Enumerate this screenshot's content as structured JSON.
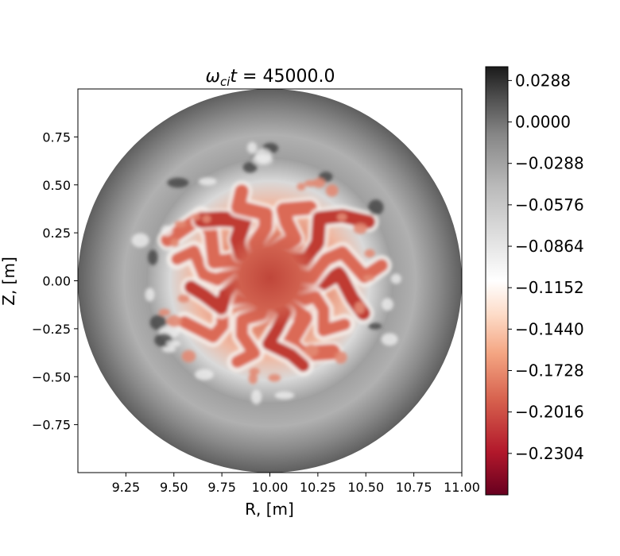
{
  "chart_data": {
    "type": "heatmap",
    "title_symbol": "ω",
    "title_subscript": "ci",
    "title_var": "t",
    "title_eq": " = ",
    "title_value": "45000.0",
    "xlabel": "R, [m]",
    "ylabel": "Z, [m]",
    "xlim": [
      9.0,
      11.0
    ],
    "ylim": [
      -1.0,
      1.0
    ],
    "x_ticks": [
      "9.25",
      "9.50",
      "9.75",
      "10.00",
      "10.25",
      "10.50",
      "10.75",
      "11.00"
    ],
    "x_tick_values": [
      9.25,
      9.5,
      9.75,
      10.0,
      10.25,
      10.5,
      10.75,
      11.0
    ],
    "y_ticks": [
      "0.75",
      "0.50",
      "0.25",
      "0.00",
      "−0.25",
      "−0.50",
      "−0.75"
    ],
    "y_tick_values": [
      0.75,
      0.5,
      0.25,
      0.0,
      -0.25,
      -0.5,
      -0.75
    ],
    "domain": {
      "shape": "circle",
      "center_r": 10.0,
      "center_z": 0.0,
      "radius": 1.0
    },
    "colormap": "RdGy",
    "colorbar": {
      "min": -0.2592,
      "max": 0.0384,
      "ticks": [
        "0.0288",
        "0.0000",
        "−0.0288",
        "−0.0576",
        "−0.0864",
        "−0.1152",
        "−0.1440",
        "−0.1728",
        "−0.2016",
        "−0.2304"
      ],
      "tick_values": [
        0.0288,
        0.0,
        -0.0288,
        -0.0576,
        -0.0864,
        -0.1152,
        -0.144,
        -0.1728,
        -0.2016,
        -0.2304
      ]
    },
    "colors": {
      "dark": "#1a1a1a",
      "gray": "#8c8c8c",
      "white": "#ffffff",
      "light_red": "#f4a582",
      "red": "#d6604d",
      "dark_red": "#67001f"
    }
  }
}
